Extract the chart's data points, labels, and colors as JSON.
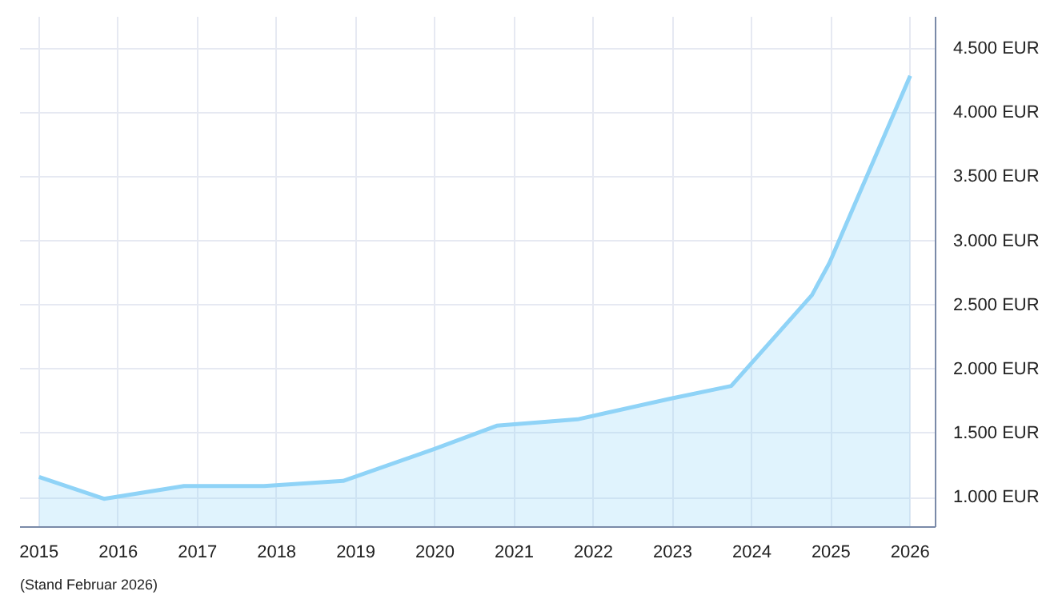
{
  "chart_data": {
    "type": "area",
    "x": [
      2015.0,
      2015.82,
      2016.83,
      2017.84,
      2018.84,
      2020.0,
      2020.78,
      2021.8,
      2022.96,
      2023.74,
      2024.76,
      2024.98,
      2026.0
    ],
    "series": [
      {
        "color": "#8fd3f7",
        "values": [
          1160,
          990,
          1090,
          1090,
          1130,
          1380,
          1560,
          1610,
          1770,
          1870,
          2580,
          2830,
          4290
        ]
      }
    ],
    "xlim": [
      2014.76,
      2026.32
    ],
    "ylim": [
      770,
      4750
    ],
    "xticks": [
      2015,
      2016,
      2017,
      2018,
      2019,
      2020,
      2021,
      2022,
      2023,
      2024,
      2025,
      2026
    ],
    "yticks": [
      {
        "value": 1000,
        "label": "1.000 EUR"
      },
      {
        "value": 1500,
        "label": "1.500 EUR"
      },
      {
        "value": 2000,
        "label": "2.000 EUR"
      },
      {
        "value": 2500,
        "label": "2.500 EUR"
      },
      {
        "value": 3000,
        "label": "3.000 EUR"
      },
      {
        "value": 3500,
        "label": "3.500 EUR"
      },
      {
        "value": 4000,
        "label": "4.000 EUR"
      },
      {
        "value": 4500,
        "label": "4.500 EUR"
      }
    ],
    "grid": true,
    "annotations": [
      "(Stand Februar 2026)"
    ]
  }
}
